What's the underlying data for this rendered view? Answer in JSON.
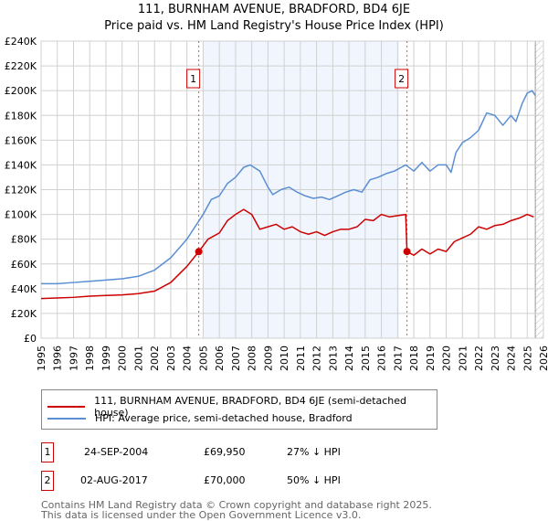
{
  "title_line1": "111, BURNHAM AVENUE, BRADFORD, BD4 6JE",
  "title_line2": "Price paid vs. HM Land Registry's House Price Index (HPI)",
  "chart_data": {
    "type": "line",
    "xlim": [
      1995,
      2026
    ],
    "ylim": [
      0,
      240000
    ],
    "yticks": [
      {
        "v": 0,
        "l": "£0"
      },
      {
        "v": 20000,
        "l": "£20K"
      },
      {
        "v": 40000,
        "l": "£40K"
      },
      {
        "v": 60000,
        "l": "£60K"
      },
      {
        "v": 80000,
        "l": "£80K"
      },
      {
        "v": 100000,
        "l": "£100K"
      },
      {
        "v": 120000,
        "l": "£120K"
      },
      {
        "v": 140000,
        "l": "£140K"
      },
      {
        "v": 160000,
        "l": "£160K"
      },
      {
        "v": 180000,
        "l": "£180K"
      },
      {
        "v": 200000,
        "l": "£200K"
      },
      {
        "v": 220000,
        "l": "£220K"
      },
      {
        "v": 240000,
        "l": "£240K"
      }
    ],
    "xticks": [
      "1995",
      "1996",
      "1997",
      "1998",
      "1999",
      "2000",
      "2001",
      "2002",
      "2003",
      "2004",
      "2005",
      "2006",
      "2007",
      "2008",
      "2009",
      "2010",
      "2011",
      "2012",
      "2013",
      "2014",
      "2015",
      "2016",
      "2017",
      "2018",
      "2019",
      "2020",
      "2021",
      "2022",
      "2023",
      "2024",
      "2025",
      "2026"
    ],
    "shaded_range": [
      2005.0,
      2017.1
    ],
    "hatched_from": 2025.5,
    "series": [
      {
        "name": "111, BURNHAM AVENUE, BRADFORD, BD4 6JE (semi-detached house)",
        "color": "#cc0000",
        "points": [
          [
            1995,
            32000
          ],
          [
            1996,
            32500
          ],
          [
            1997,
            33000
          ],
          [
            1998,
            34000
          ],
          [
            1999,
            34500
          ],
          [
            2000,
            35000
          ],
          [
            2001,
            36000
          ],
          [
            2002,
            38000
          ],
          [
            2003,
            45000
          ],
          [
            2004,
            58000
          ],
          [
            2004.73,
            69950
          ],
          [
            2005.3,
            80000
          ],
          [
            2006,
            85000
          ],
          [
            2006.5,
            95000
          ],
          [
            2007,
            100000
          ],
          [
            2007.5,
            104000
          ],
          [
            2008,
            100000
          ],
          [
            2008.5,
            88000
          ],
          [
            2009,
            90000
          ],
          [
            2009.5,
            92000
          ],
          [
            2010,
            88000
          ],
          [
            2010.5,
            90000
          ],
          [
            2011,
            86000
          ],
          [
            2011.5,
            84000
          ],
          [
            2012,
            86000
          ],
          [
            2012.5,
            83000
          ],
          [
            2013,
            86000
          ],
          [
            2013.5,
            88000
          ],
          [
            2014,
            88000
          ],
          [
            2014.5,
            90000
          ],
          [
            2015,
            96000
          ],
          [
            2015.5,
            95000
          ],
          [
            2016,
            100000
          ],
          [
            2016.5,
            98000
          ],
          [
            2017.5,
            100000
          ],
          [
            2017.58,
            70000
          ],
          [
            2018,
            67000
          ],
          [
            2018.5,
            72000
          ],
          [
            2019,
            68000
          ],
          [
            2019.5,
            72000
          ],
          [
            2020,
            70000
          ],
          [
            2020.5,
            78000
          ],
          [
            2021,
            81000
          ],
          [
            2021.5,
            84000
          ],
          [
            2022,
            90000
          ],
          [
            2022.5,
            88000
          ],
          [
            2023,
            91000
          ],
          [
            2023.5,
            92000
          ],
          [
            2024,
            95000
          ],
          [
            2024.5,
            97000
          ],
          [
            2025,
            100000
          ],
          [
            2025.4,
            98000
          ]
        ]
      },
      {
        "name": "HPI: Average price, semi-detached house, Bradford",
        "color": "#5b8fd4",
        "points": [
          [
            1995,
            44000
          ],
          [
            1996,
            44000
          ],
          [
            1997,
            45000
          ],
          [
            1998,
            46000
          ],
          [
            1999,
            47000
          ],
          [
            2000,
            48000
          ],
          [
            2001,
            50000
          ],
          [
            2002,
            55000
          ],
          [
            2003,
            65000
          ],
          [
            2004,
            80000
          ],
          [
            2004.7,
            94000
          ],
          [
            2005,
            100000
          ],
          [
            2005.5,
            112000
          ],
          [
            2006,
            115000
          ],
          [
            2006.5,
            125000
          ],
          [
            2007,
            130000
          ],
          [
            2007.5,
            138000
          ],
          [
            2007.9,
            140000
          ],
          [
            2008.5,
            135000
          ],
          [
            2009,
            122000
          ],
          [
            2009.3,
            116000
          ],
          [
            2009.8,
            120000
          ],
          [
            2010.3,
            122000
          ],
          [
            2010.8,
            118000
          ],
          [
            2011.3,
            115000
          ],
          [
            2011.8,
            113000
          ],
          [
            2012.3,
            114000
          ],
          [
            2012.8,
            112000
          ],
          [
            2013.3,
            115000
          ],
          [
            2013.8,
            118000
          ],
          [
            2014.3,
            120000
          ],
          [
            2014.8,
            118000
          ],
          [
            2015.3,
            128000
          ],
          [
            2015.8,
            130000
          ],
          [
            2016.3,
            133000
          ],
          [
            2016.8,
            135000
          ],
          [
            2017.5,
            140000
          ],
          [
            2018,
            135000
          ],
          [
            2018.5,
            142000
          ],
          [
            2019,
            135000
          ],
          [
            2019.5,
            140000
          ],
          [
            2020,
            140000
          ],
          [
            2020.3,
            134000
          ],
          [
            2020.6,
            150000
          ],
          [
            2021,
            158000
          ],
          [
            2021.5,
            162000
          ],
          [
            2022,
            168000
          ],
          [
            2022.5,
            182000
          ],
          [
            2023,
            180000
          ],
          [
            2023.5,
            172000
          ],
          [
            2024,
            180000
          ],
          [
            2024.3,
            175000
          ],
          [
            2024.7,
            190000
          ],
          [
            2025,
            198000
          ],
          [
            2025.3,
            200000
          ],
          [
            2025.5,
            196000
          ]
        ]
      }
    ],
    "sales": [
      {
        "id": "1",
        "x": 2004.73,
        "y": 69950,
        "date": "24-SEP-2004",
        "price": "£69,950",
        "hpi": "27% ↓ HPI"
      },
      {
        "id": "2",
        "x": 2017.58,
        "y": 70000,
        "date": "02-AUG-2017",
        "price": "£70,000",
        "hpi": "50% ↓ HPI"
      }
    ]
  },
  "legend": {
    "red": "111, BURNHAM AVENUE, BRADFORD, BD4 6JE (semi-detached house)",
    "blue": "HPI: Average price, semi-detached house, Bradford"
  },
  "footer": {
    "line1": "Contains HM Land Registry data © Crown copyright and database right 2025.",
    "line2": "This data is licensed under the Open Government Licence v3.0."
  }
}
